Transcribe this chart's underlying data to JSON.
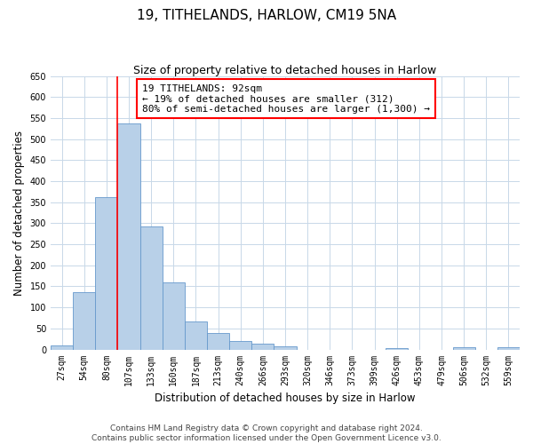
{
  "title": "19, TITHELANDS, HARLOW, CM19 5NA",
  "subtitle": "Size of property relative to detached houses in Harlow",
  "xlabel": "Distribution of detached houses by size in Harlow",
  "ylabel": "Number of detached properties",
  "bin_labels": [
    "27sqm",
    "54sqm",
    "80sqm",
    "107sqm",
    "133sqm",
    "160sqm",
    "187sqm",
    "213sqm",
    "240sqm",
    "266sqm",
    "293sqm",
    "320sqm",
    "346sqm",
    "373sqm",
    "399sqm",
    "426sqm",
    "453sqm",
    "479sqm",
    "506sqm",
    "532sqm",
    "559sqm"
  ],
  "bar_values": [
    10,
    137,
    363,
    537,
    292,
    160,
    66,
    40,
    20,
    13,
    8,
    0,
    0,
    0,
    0,
    4,
    0,
    0,
    5,
    0,
    5
  ],
  "bar_color": "#b8d0e8",
  "bar_edge_color": "#6699cc",
  "ylim": [
    0,
    650
  ],
  "yticks": [
    0,
    50,
    100,
    150,
    200,
    250,
    300,
    350,
    400,
    450,
    500,
    550,
    600,
    650
  ],
  "vline_x": 3,
  "vline_color": "red",
  "annotation_title": "19 TITHELANDS: 92sqm",
  "annotation_line1": "← 19% of detached houses are smaller (312)",
  "annotation_line2": "80% of semi-detached houses are larger (1,300) →",
  "annotation_box_color": "red",
  "footnote1": "Contains HM Land Registry data © Crown copyright and database right 2024.",
  "footnote2": "Contains public sector information licensed under the Open Government Licence v3.0.",
  "background_color": "#ffffff",
  "grid_color": "#c8d8e8",
  "title_fontsize": 11,
  "subtitle_fontsize": 9,
  "axis_label_fontsize": 8.5,
  "tick_fontsize": 7,
  "annotation_fontsize": 8,
  "footnote_fontsize": 6.5
}
